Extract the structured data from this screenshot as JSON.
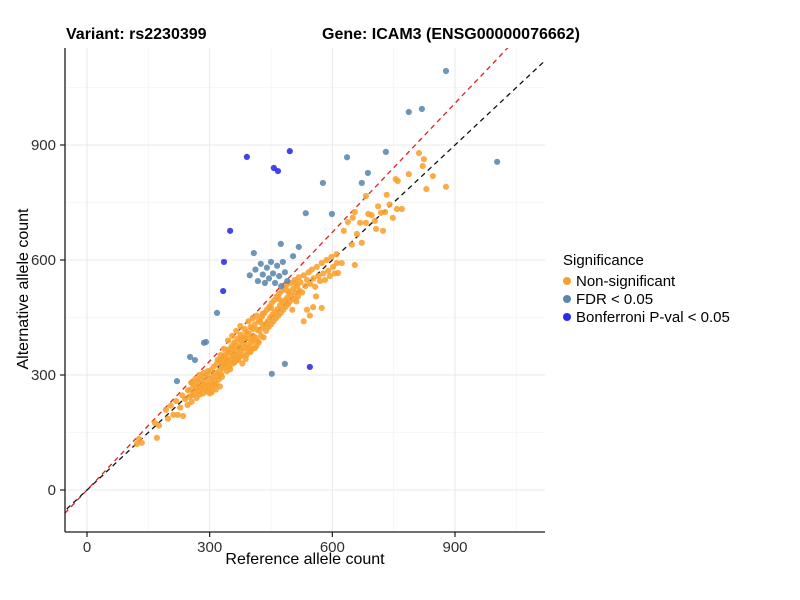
{
  "titles": {
    "variant": "Variant: rs2230399",
    "gene": "Gene: ICAM3 (ENSG00000076662)"
  },
  "axes": {
    "x_label": "Reference allele count",
    "y_label": "Alternative allele count",
    "x_ticks": [
      0,
      300,
      600,
      900
    ],
    "y_ticks": [
      0,
      300,
      600,
      900
    ],
    "minor_ticks": [
      150,
      450,
      750,
      1050
    ]
  },
  "legend": {
    "title": "Significance",
    "items": [
      {
        "label": "Non-significant",
        "color": "#F8A02E"
      },
      {
        "label": "FDR < 0.05",
        "color": "#5B86AD"
      },
      {
        "label": "Bonferroni P-val < 0.05",
        "color": "#2A2AE8"
      }
    ]
  },
  "colors": {
    "grid_major": "#E9E9E9",
    "grid_minor": "#F4F4F4",
    "axis_line": "#1a1a1a",
    "tick_label": "#303030",
    "identity_line": "#111111",
    "ratio_line": "#E02020"
  },
  "chart_data": {
    "type": "scatter",
    "title": "Variant: rs2230399 | Gene: ICAM3 (ENSG00000076662)",
    "xlabel": "Reference allele count",
    "ylabel": "Alternative allele count",
    "xlim": [
      -54,
      1120
    ],
    "ylim": [
      -110,
      1153
    ],
    "grid": true,
    "legend_position": "right",
    "reference_lines": [
      {
        "name": "ratio-fit",
        "slope": 1.121,
        "intercept": 0,
        "style": "dashed",
        "color": "#E02020"
      },
      {
        "name": "identity",
        "slope": 1.0,
        "intercept": 0,
        "style": "dashed",
        "color": "#111111"
      }
    ],
    "series": [
      {
        "name": "Non-significant",
        "color": "#F8A02E",
        "points": [
          [
            122,
            120
          ],
          [
            127,
            133
          ],
          [
            134,
            123
          ],
          [
            171,
            136
          ],
          [
            166,
            175
          ],
          [
            176,
            168
          ],
          [
            193,
            209
          ],
          [
            198,
            186
          ],
          [
            205,
            220
          ],
          [
            211,
            196
          ],
          [
            222,
            196
          ],
          [
            218,
            232
          ],
          [
            228,
            215
          ],
          [
            235,
            193
          ],
          [
            240,
            237
          ],
          [
            246,
            222
          ],
          [
            233,
            247
          ],
          [
            251,
            243
          ],
          [
            256,
            230
          ],
          [
            247,
            260
          ],
          [
            253,
            262
          ],
          [
            257,
            247
          ],
          [
            260,
            275
          ],
          [
            263,
            252
          ],
          [
            266,
            266
          ],
          [
            268,
            240
          ],
          [
            270,
            282
          ],
          [
            272,
            258
          ],
          [
            274,
            270
          ],
          [
            276,
            249
          ],
          [
            278,
            288
          ],
          [
            280,
            263
          ],
          [
            282,
            276
          ],
          [
            284,
            252
          ],
          [
            286,
            295
          ],
          [
            288,
            268
          ],
          [
            290,
            280
          ],
          [
            292,
            257
          ],
          [
            294,
            300
          ],
          [
            296,
            273
          ],
          [
            298,
            262
          ],
          [
            300,
            290
          ],
          [
            302,
            312
          ],
          [
            304,
            278
          ],
          [
            306,
            268
          ],
          [
            308,
            296
          ],
          [
            310,
            322
          ],
          [
            312,
            285
          ],
          [
            314,
            305
          ],
          [
            316,
            276
          ],
          [
            318,
            330
          ],
          [
            320,
            298
          ],
          [
            322,
            288
          ],
          [
            324,
            312
          ],
          [
            326,
            340
          ],
          [
            328,
            302
          ],
          [
            330,
            325
          ],
          [
            305,
            255
          ],
          [
            315,
            262
          ],
          [
            325,
            270
          ],
          [
            295,
            310
          ],
          [
            285,
            305
          ],
          [
            275,
            300
          ],
          [
            265,
            290
          ],
          [
            255,
            280
          ],
          [
            310,
            275
          ],
          [
            300,
            252
          ],
          [
            320,
            340
          ],
          [
            330,
            295
          ],
          [
            327,
            352
          ],
          [
            332,
            340
          ],
          [
            334,
            318
          ],
          [
            336,
            352
          ],
          [
            338,
            328
          ],
          [
            340,
            345
          ],
          [
            342,
            310
          ],
          [
            344,
            366
          ],
          [
            346,
            336
          ],
          [
            348,
            322
          ],
          [
            350,
            358
          ],
          [
            352,
            342
          ],
          [
            354,
            375
          ],
          [
            356,
            330
          ],
          [
            358,
            350
          ],
          [
            360,
            385
          ],
          [
            362,
            345
          ],
          [
            364,
            362
          ],
          [
            366,
            338
          ],
          [
            368,
            395
          ],
          [
            370,
            355
          ],
          [
            372,
            372
          ],
          [
            374,
            348
          ],
          [
            376,
            405
          ],
          [
            378,
            365
          ],
          [
            380,
            382
          ],
          [
            382,
            352
          ],
          [
            384,
            398
          ],
          [
            386,
            370
          ],
          [
            388,
            342
          ],
          [
            390,
            412
          ],
          [
            392,
            378
          ],
          [
            394,
            362
          ],
          [
            396,
            395
          ],
          [
            398,
            372
          ],
          [
            400,
            425
          ],
          [
            402,
            385
          ],
          [
            404,
            368
          ],
          [
            406,
            402
          ],
          [
            408,
            390
          ],
          [
            410,
            432
          ],
          [
            412,
            398
          ],
          [
            414,
            375
          ],
          [
            416,
            418
          ],
          [
            418,
            388
          ],
          [
            420,
            442
          ],
          [
            335,
            368
          ],
          [
            345,
            390
          ],
          [
            355,
            402
          ],
          [
            365,
            415
          ],
          [
            375,
            428
          ],
          [
            385,
            420
          ],
          [
            395,
            440
          ],
          [
            405,
            448
          ],
          [
            415,
            455
          ],
          [
            340,
            330
          ],
          [
            350,
            315
          ],
          [
            360,
            332
          ],
          [
            370,
            340
          ],
          [
            380,
            330
          ],
          [
            390,
            352
          ],
          [
            400,
            360
          ],
          [
            410,
            370
          ],
          [
            420,
            385
          ],
          [
            345,
            358
          ],
          [
            355,
            368
          ],
          [
            365,
            378
          ],
          [
            375,
            390
          ],
          [
            385,
            395
          ],
          [
            395,
            408
          ],
          [
            405,
            420
          ],
          [
            422,
            415
          ],
          [
            424,
            438
          ],
          [
            426,
            402
          ],
          [
            428,
            452
          ],
          [
            430,
            425
          ],
          [
            432,
            398
          ],
          [
            434,
            462
          ],
          [
            436,
            432
          ],
          [
            438,
            415
          ],
          [
            440,
            470
          ],
          [
            442,
            440
          ],
          [
            444,
            425
          ],
          [
            446,
            478
          ],
          [
            448,
            450
          ],
          [
            450,
            432
          ],
          [
            452,
            488
          ],
          [
            454,
            458
          ],
          [
            456,
            440
          ],
          [
            458,
            495
          ],
          [
            460,
            465
          ],
          [
            462,
            448
          ],
          [
            464,
            505
          ],
          [
            466,
            472
          ],
          [
            468,
            455
          ],
          [
            470,
            512
          ],
          [
            472,
            482
          ],
          [
            474,
            462
          ],
          [
            476,
            520
          ],
          [
            478,
            490
          ],
          [
            480,
            470
          ],
          [
            482,
            528
          ],
          [
            484,
            495
          ],
          [
            486,
            478
          ],
          [
            488,
            535
          ],
          [
            490,
            502
          ],
          [
            492,
            485
          ],
          [
            494,
            515
          ],
          [
            496,
            492
          ],
          [
            498,
            540
          ],
          [
            500,
            508
          ],
          [
            502,
            470
          ],
          [
            504,
            525
          ],
          [
            506,
            498
          ],
          [
            508,
            548
          ],
          [
            510,
            515
          ],
          [
            512,
            492
          ],
          [
            514,
            532
          ],
          [
            516,
            505
          ],
          [
            518,
            555
          ],
          [
            520,
            520
          ],
          [
            430,
            460
          ],
          [
            450,
            475
          ],
          [
            470,
            498
          ],
          [
            490,
            520
          ],
          [
            510,
            540
          ],
          [
            553,
            477
          ],
          [
            574,
            475
          ],
          [
            560,
            505
          ],
          [
            545,
            455
          ],
          [
            530,
            440
          ],
          [
            538,
            470
          ],
          [
            522,
            542
          ],
          [
            526,
            515
          ],
          [
            530,
            560
          ],
          [
            534,
            532
          ],
          [
            538,
            548
          ],
          [
            542,
            568
          ],
          [
            546,
            538
          ],
          [
            550,
            575
          ],
          [
            554,
            552
          ],
          [
            558,
            530
          ],
          [
            562,
            582
          ],
          [
            566,
            558
          ],
          [
            570,
            545
          ],
          [
            574,
            592
          ],
          [
            578,
            565
          ],
          [
            582,
            548
          ],
          [
            586,
            600
          ],
          [
            590,
            572
          ],
          [
            594,
            558
          ],
          [
            598,
            608
          ],
          [
            602,
            582
          ],
          [
            606,
            565
          ],
          [
            610,
            615
          ],
          [
            611,
            592
          ],
          [
            623,
            592
          ],
          [
            614,
            566
          ],
          [
            628,
            676
          ],
          [
            638,
            699
          ],
          [
            648,
            640
          ],
          [
            655,
            587
          ],
          [
            650,
            710
          ],
          [
            655,
            725
          ],
          [
            660,
            668
          ],
          [
            668,
            697
          ],
          [
            672,
            645
          ],
          [
            682,
            697
          ],
          [
            682,
            767
          ],
          [
            688,
            720
          ],
          [
            696,
            717
          ],
          [
            704,
            702
          ],
          [
            707,
            681
          ],
          [
            712,
            740
          ],
          [
            719,
            723
          ],
          [
            724,
            676
          ],
          [
            729,
            725
          ],
          [
            733,
            770
          ],
          [
            740,
            745
          ],
          [
            748,
            710
          ],
          [
            755,
            811
          ],
          [
            758,
            733
          ],
          [
            760,
            806
          ],
          [
            770,
            733
          ],
          [
            787,
            824
          ],
          [
            812,
            879
          ],
          [
            821,
            845
          ],
          [
            824,
            863
          ],
          [
            830,
            785
          ],
          [
            846,
            819
          ],
          [
            878,
            791
          ]
        ]
      },
      {
        "name": "FDR < 0.05",
        "color": "#5B86AD",
        "points": [
          [
            878,
            1093
          ],
          [
            819,
            994
          ],
          [
            787,
            986
          ],
          [
            731,
            882
          ],
          [
            636,
            868
          ],
          [
            687,
            827
          ],
          [
            672,
            801
          ],
          [
            577,
            801
          ],
          [
            1003,
            856
          ],
          [
            599,
            720
          ],
          [
            535,
            722
          ],
          [
            518,
            634
          ],
          [
            504,
            610
          ],
          [
            474,
            642
          ],
          [
            398,
            560
          ],
          [
            408,
            618
          ],
          [
            412,
            575
          ],
          [
            418,
            545
          ],
          [
            425,
            590
          ],
          [
            430,
            562
          ],
          [
            435,
            540
          ],
          [
            440,
            580
          ],
          [
            445,
            552
          ],
          [
            450,
            595
          ],
          [
            455,
            565
          ],
          [
            460,
            540
          ],
          [
            465,
            585
          ],
          [
            470,
            558
          ],
          [
            475,
            532
          ],
          [
            479,
            595
          ],
          [
            484,
            568
          ],
          [
            490,
            545
          ],
          [
            318,
            462
          ],
          [
            291,
            386
          ],
          [
            286,
            384
          ],
          [
            264,
            339
          ],
          [
            252,
            347
          ],
          [
            220,
            284
          ],
          [
            484,
            329
          ],
          [
            452,
            303
          ]
        ]
      },
      {
        "name": "Bonferroni P-val < 0.05",
        "color": "#2A2AE8",
        "points": [
          [
            391,
            869
          ],
          [
            457,
            840
          ],
          [
            467,
            832
          ],
          [
            496,
            884
          ],
          [
            350,
            676
          ],
          [
            335,
            595
          ],
          [
            333,
            519
          ],
          [
            545,
            321
          ]
        ]
      }
    ]
  }
}
